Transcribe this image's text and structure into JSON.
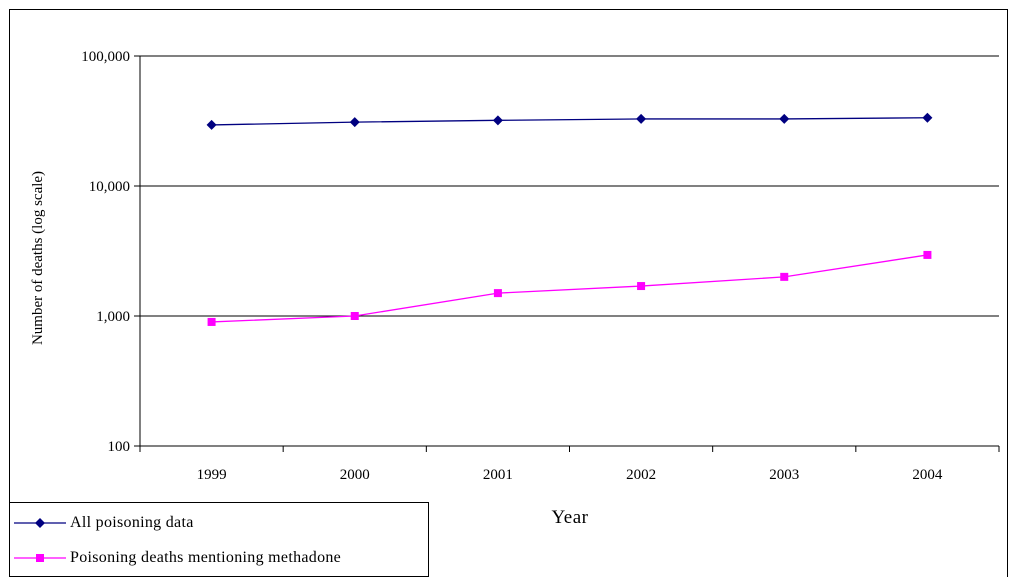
{
  "chart_data": {
    "type": "line",
    "title": "",
    "xlabel": "Year",
    "ylabel": "Number of deaths (log scale)",
    "y_scale": "log",
    "ylim": [
      100,
      100000
    ],
    "y_ticks": [
      100,
      1000,
      10000,
      100000
    ],
    "y_tick_labels": [
      "100",
      "1,000",
      "10,000",
      "100,000"
    ],
    "categories": [
      "1999",
      "2000",
      "2001",
      "2002",
      "2003",
      "2004"
    ],
    "grid": "horizontal major gridlines",
    "legend_position": "bottom-left",
    "series": [
      {
        "name": "All poisoning data",
        "values": [
          29500,
          31000,
          32000,
          32800,
          32800,
          33500
        ],
        "color": "#000080",
        "marker": "diamond"
      },
      {
        "name": "Poisoning deaths mentioning methadone",
        "values": [
          900,
          1000,
          1500,
          1700,
          2000,
          2950
        ],
        "color": "#ff00ff",
        "marker": "square"
      }
    ]
  }
}
